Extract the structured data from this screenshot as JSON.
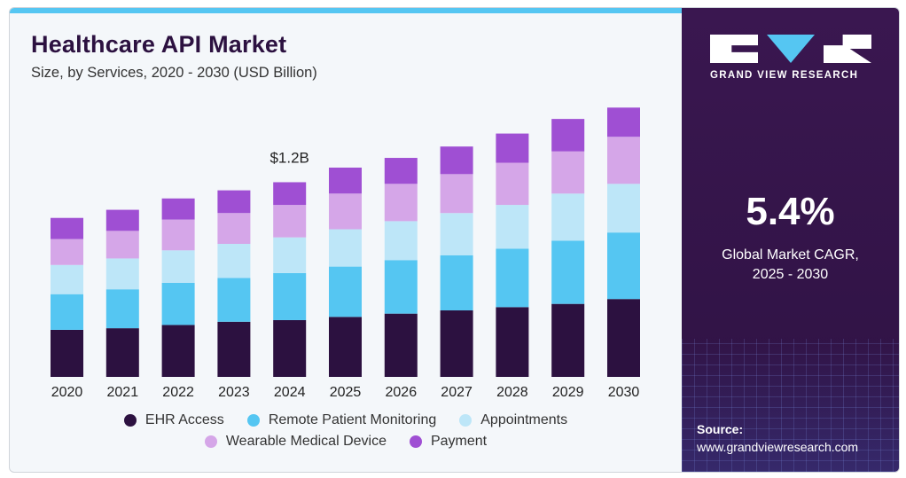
{
  "header": {
    "title": "Healthcare API Market",
    "subtitle": "Size, by Services, 2020 - 2030 (USD Billion)"
  },
  "brand": {
    "logo_text": "GRAND VIEW RESEARCH"
  },
  "panel": {
    "cagr_value": "5.4%",
    "cagr_label_line1": "Global Market CAGR,",
    "cagr_label_line2": "2025 - 2030",
    "source_label": "Source:",
    "source_url": "www.grandviewresearch.com"
  },
  "chart_data": {
    "type": "bar",
    "stacked": true,
    "categories": [
      "2020",
      "2021",
      "2022",
      "2023",
      "2024",
      "2025",
      "2026",
      "2027",
      "2028",
      "2029",
      "2030"
    ],
    "series": [
      {
        "name": "EHR Access",
        "color": "#2c1140",
        "values": [
          0.29,
          0.3,
          0.32,
          0.34,
          0.35,
          0.37,
          0.39,
          0.41,
          0.43,
          0.45,
          0.48
        ]
      },
      {
        "name": "Remote Patient Monitoring",
        "color": "#55c6f2",
        "values": [
          0.22,
          0.24,
          0.26,
          0.27,
          0.29,
          0.31,
          0.33,
          0.34,
          0.36,
          0.39,
          0.41
        ]
      },
      {
        "name": "Appointments",
        "color": "#bde6f8",
        "values": [
          0.18,
          0.19,
          0.2,
          0.21,
          0.22,
          0.23,
          0.24,
          0.26,
          0.27,
          0.29,
          0.3
        ]
      },
      {
        "name": "Wearable Medical Device",
        "color": "#d5a6e8",
        "values": [
          0.16,
          0.17,
          0.19,
          0.19,
          0.2,
          0.22,
          0.23,
          0.24,
          0.26,
          0.26,
          0.29
        ]
      },
      {
        "name": "Payment",
        "color": "#9f4fd3",
        "values": [
          0.13,
          0.13,
          0.13,
          0.14,
          0.14,
          0.16,
          0.16,
          0.17,
          0.18,
          0.2,
          0.18
        ]
      }
    ],
    "annotations": [
      {
        "category": "2024",
        "text": "$1.2B"
      }
    ],
    "ylim": [
      0,
      1.7
    ],
    "grid": false,
    "legend_position": "bottom"
  }
}
